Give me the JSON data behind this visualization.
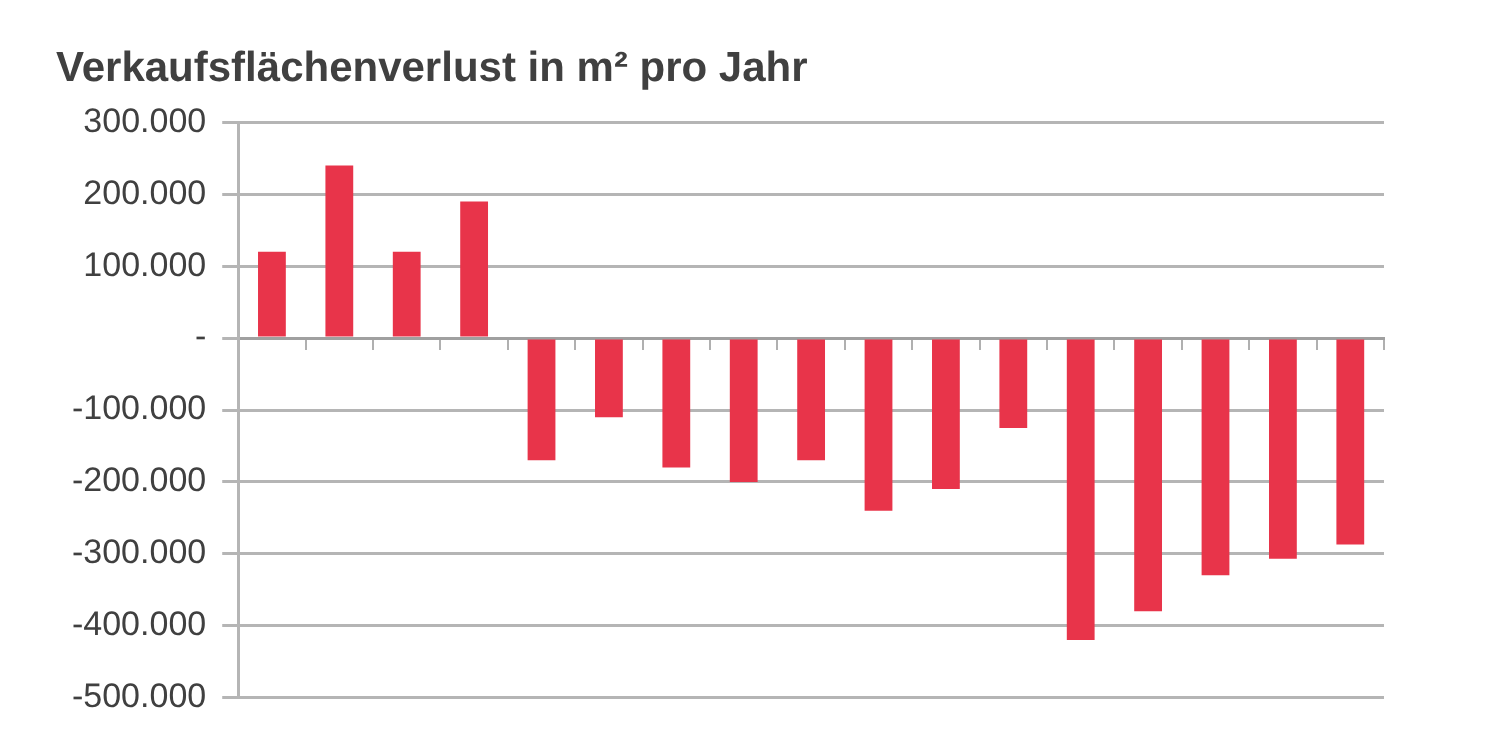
{
  "chart_data": {
    "type": "bar",
    "title": "Verkaufsflächenverlust in m² pro Jahr",
    "categories": [
      null,
      null,
      null,
      null,
      null,
      null,
      null,
      null,
      null,
      null,
      null,
      null,
      null,
      null,
      null,
      null,
      null
    ],
    "values": [
      120000,
      240000,
      120000,
      190000,
      -170000,
      -110000,
      -180000,
      -200000,
      -170000,
      -240000,
      -210000,
      -125000,
      -420000,
      -380000,
      -330000,
      -307000,
      -287000
    ],
    "color": "#e8344a",
    "ylim": [
      -500000,
      300000
    ],
    "yticks": [
      {
        "value": -500000,
        "label": "-500.000"
      },
      {
        "value": -400000,
        "label": "-400.000"
      },
      {
        "value": -300000,
        "label": "-300.000"
      },
      {
        "value": -200000,
        "label": "-200.000"
      },
      {
        "value": -100000,
        "label": "-100.000"
      },
      {
        "value": 0,
        "label": "-"
      },
      {
        "value": 100000,
        "label": "100.000"
      },
      {
        "value": 200000,
        "label": "200.000"
      },
      {
        "value": 300000,
        "label": "300.000"
      }
    ],
    "grid": "y",
    "legend": false
  }
}
